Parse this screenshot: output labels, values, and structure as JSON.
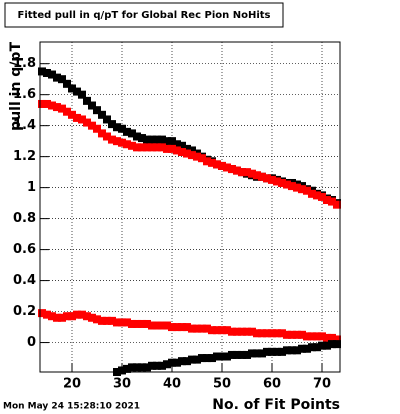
{
  "chart_data": {
    "type": "scatter",
    "title": "Fitted pull in q/pT for Global Rec Pion NoHits",
    "y_label": "pull in q/pT",
    "x_label": "No. of Fit Points",
    "timestamp": "Mon May 24 15:28:10 2021",
    "x": [
      14,
      15,
      16,
      17,
      18,
      19,
      20,
      21,
      22,
      23,
      24,
      25,
      26,
      27,
      28,
      29,
      30,
      31,
      32,
      33,
      34,
      35,
      36,
      37,
      38,
      39,
      40,
      41,
      42,
      43,
      44,
      45,
      46,
      47,
      48,
      49,
      50,
      51,
      52,
      53,
      54,
      55,
      56,
      57,
      58,
      59,
      60,
      61,
      62,
      63,
      64,
      65,
      66,
      67,
      68,
      69,
      70,
      71,
      72,
      73
    ],
    "series": [
      {
        "color": "#000000",
        "values": [
          1.75,
          1.74,
          1.73,
          1.71,
          1.7,
          1.67,
          1.64,
          1.62,
          1.6,
          1.56,
          1.53,
          1.5,
          1.47,
          1.44,
          1.41,
          1.39,
          1.38,
          1.36,
          1.35,
          1.33,
          1.32,
          1.31,
          1.31,
          1.31,
          1.31,
          1.3,
          1.3,
          1.28,
          1.27,
          1.25,
          1.24,
          1.22,
          1.2,
          1.18,
          1.17,
          1.15,
          1.14,
          1.13,
          1.12,
          1.11,
          1.1,
          1.09,
          1.08,
          1.07,
          1.07,
          1.06,
          1.06,
          1.05,
          1.04,
          1.03,
          1.03,
          1.02,
          1.01,
          0.99,
          0.98,
          0.96,
          0.95,
          0.93,
          0.92,
          0.9
        ]
      },
      {
        "color": "#ff0000",
        "values": [
          1.54,
          1.54,
          1.53,
          1.52,
          1.51,
          1.49,
          1.47,
          1.45,
          1.44,
          1.42,
          1.4,
          1.38,
          1.35,
          1.33,
          1.31,
          1.3,
          1.29,
          1.28,
          1.27,
          1.26,
          1.26,
          1.26,
          1.26,
          1.26,
          1.26,
          1.25,
          1.25,
          1.24,
          1.23,
          1.22,
          1.21,
          1.2,
          1.19,
          1.17,
          1.16,
          1.15,
          1.14,
          1.13,
          1.12,
          1.11,
          1.1,
          1.1,
          1.09,
          1.08,
          1.07,
          1.06,
          1.05,
          1.04,
          1.03,
          1.02,
          1.01,
          1.0,
          0.99,
          0.98,
          0.96,
          0.95,
          0.94,
          0.92,
          0.91,
          0.89
        ]
      },
      {
        "color": "#ff0000",
        "values": [
          0.19,
          0.18,
          0.17,
          0.16,
          0.16,
          0.17,
          0.17,
          0.18,
          0.18,
          0.17,
          0.16,
          0.15,
          0.14,
          0.14,
          0.14,
          0.13,
          0.13,
          0.13,
          0.12,
          0.12,
          0.12,
          0.12,
          0.11,
          0.11,
          0.11,
          0.11,
          0.1,
          0.1,
          0.1,
          0.1,
          0.09,
          0.09,
          0.09,
          0.09,
          0.08,
          0.08,
          0.08,
          0.08,
          0.07,
          0.07,
          0.07,
          0.07,
          0.07,
          0.06,
          0.06,
          0.06,
          0.06,
          0.06,
          0.06,
          0.05,
          0.05,
          0.05,
          0.05,
          0.04,
          0.04,
          0.04,
          0.04,
          0.03,
          0.03,
          0.02
        ]
      },
      {
        "color": "#000000",
        "values": [
          null,
          null,
          null,
          null,
          null,
          null,
          null,
          null,
          null,
          null,
          null,
          null,
          null,
          null,
          null,
          -0.19,
          -0.18,
          -0.17,
          -0.16,
          -0.16,
          -0.16,
          -0.16,
          -0.15,
          -0.15,
          -0.15,
          -0.14,
          -0.13,
          -0.13,
          -0.12,
          -0.12,
          -0.11,
          -0.11,
          -0.1,
          -0.1,
          -0.1,
          -0.09,
          -0.09,
          -0.09,
          -0.08,
          -0.08,
          -0.08,
          -0.08,
          -0.07,
          -0.07,
          -0.07,
          -0.06,
          -0.06,
          -0.06,
          -0.06,
          -0.05,
          -0.05,
          -0.05,
          -0.04,
          -0.04,
          -0.03,
          -0.03,
          -0.02,
          -0.02,
          -0.01,
          -0.01
        ]
      }
    ],
    "xlim": [
      13.6,
      73.6
    ],
    "ylim": [
      -0.19,
      1.94
    ],
    "xticks": [
      20,
      30,
      40,
      50,
      60,
      70
    ],
    "yticks": [
      0,
      0.2,
      0.4,
      0.6,
      0.8,
      1,
      1.2,
      1.4,
      1.6,
      1.8
    ],
    "grid": true
  }
}
